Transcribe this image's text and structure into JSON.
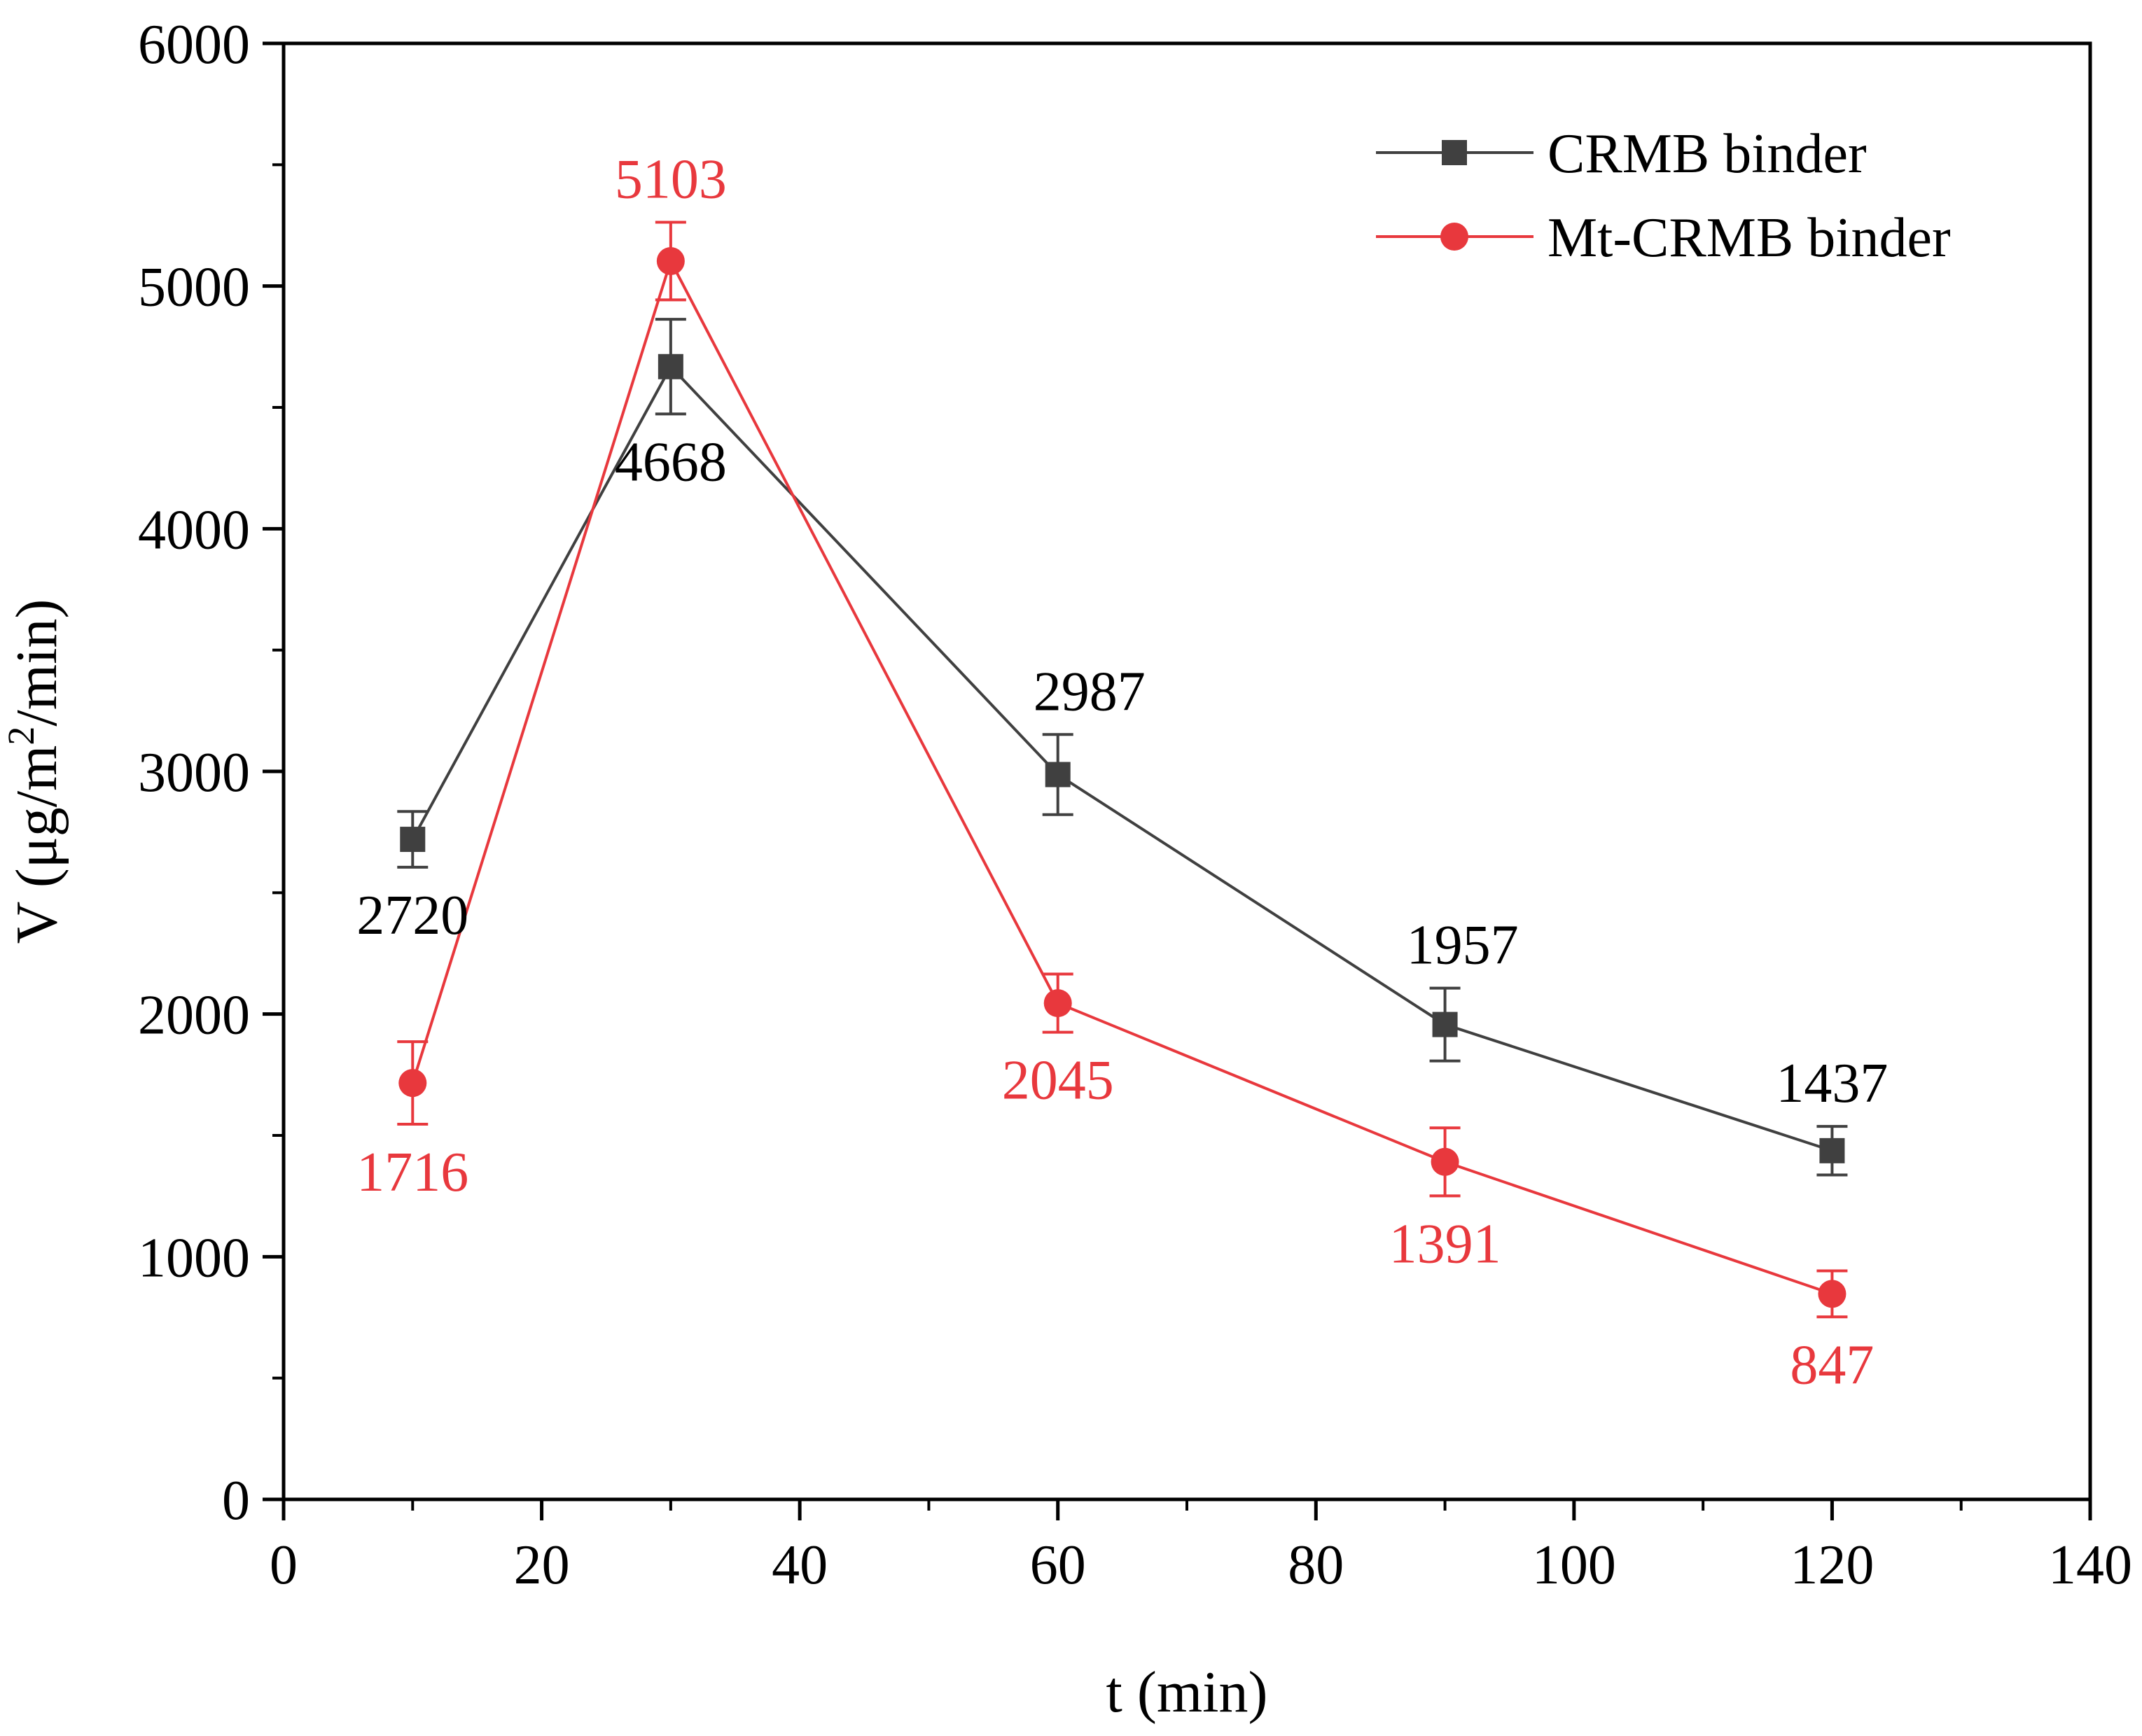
{
  "chart_data": {
    "type": "line",
    "title": "",
    "xlabel": "t (min)",
    "ylabel_prefix": "V (μg/m",
    "ylabel_sup": "2",
    "ylabel_suffix": "/min)",
    "xlim": [
      0,
      140
    ],
    "ylim": [
      0,
      6000
    ],
    "xticks": [
      0,
      20,
      40,
      60,
      80,
      100,
      120,
      140
    ],
    "yticks": [
      0,
      1000,
      2000,
      3000,
      4000,
      5000,
      6000
    ],
    "grid": false,
    "legend_position": "top-right",
    "series": [
      {
        "name": "CRMB binder",
        "color": "#404040",
        "marker": "square",
        "x": [
          10,
          30,
          60,
          90,
          120
        ],
        "values": [
          2720,
          4668,
          2987,
          1957,
          1437
        ],
        "errors": [
          115,
          195,
          165,
          150,
          100
        ],
        "labels": [
          "2720",
          "4668",
          "2987",
          "1957",
          "1437"
        ],
        "label_side": [
          "below",
          "below",
          "above",
          "above",
          "above"
        ]
      },
      {
        "name": "Mt-CRMB binder",
        "color": "#e8383d",
        "marker": "circle",
        "x": [
          10,
          30,
          60,
          90,
          120
        ],
        "values": [
          1716,
          5103,
          2045,
          1391,
          847
        ],
        "errors": [
          170,
          160,
          120,
          140,
          95
        ],
        "labels": [
          "1716",
          "5103",
          "2045",
          "1391",
          "847"
        ],
        "label_side": [
          "below",
          "above",
          "below",
          "below",
          "below"
        ]
      }
    ]
  }
}
